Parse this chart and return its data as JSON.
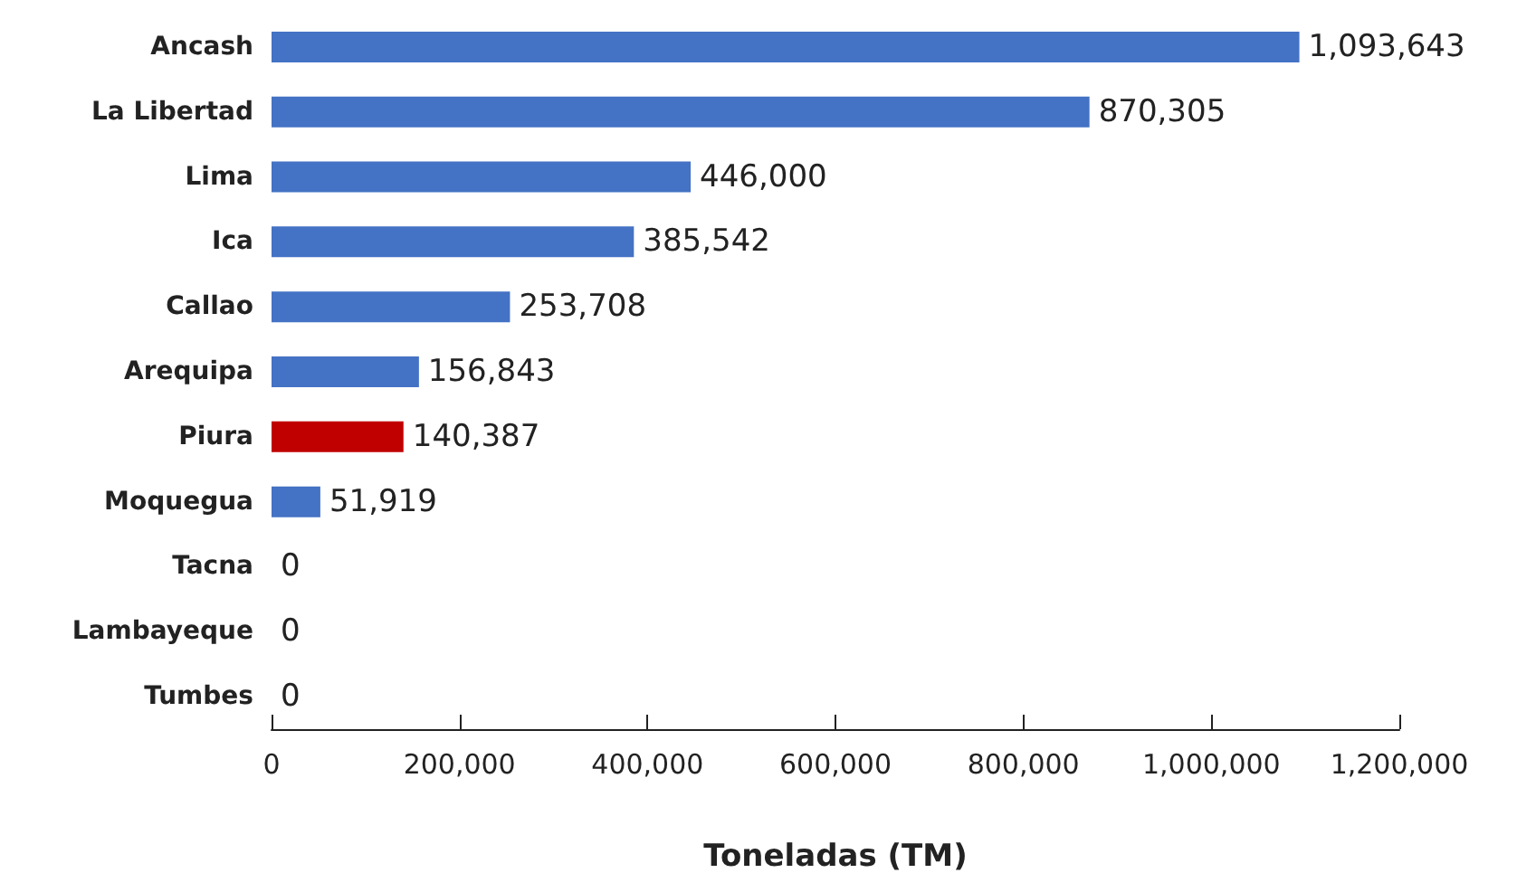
{
  "chart_data": {
    "type": "bar",
    "orientation": "horizontal",
    "xlabel": "Toneladas (TM)",
    "categories": [
      "Ancash",
      "La Libertad",
      "Lima",
      "Ica",
      "Callao",
      "Arequipa",
      "Piura",
      "Moquegua",
      "Tacna",
      "Lambayeque",
      "Tumbes"
    ],
    "values": [
      1093643,
      870305,
      446000,
      385542,
      253708,
      156843,
      140387,
      51919,
      0,
      0,
      0
    ],
    "value_labels": [
      "1,093,643",
      "870,305",
      "446,000",
      "385,542",
      "253,708",
      "156,843",
      "140,387",
      "51,919",
      "0",
      "0",
      "0"
    ],
    "colors": [
      "#4472c4",
      "#4472c4",
      "#4472c4",
      "#4472c4",
      "#4472c4",
      "#4472c4",
      "#c00000",
      "#4472c4",
      "#4472c4",
      "#4472c4",
      "#4472c4"
    ],
    "xlim": [
      0,
      1200000
    ],
    "xticks": [
      0,
      {
        "value": 200000,
        "label": "200,000"
      },
      {
        "value": 400000,
        "label": "400,000"
      },
      {
        "value": 600000,
        "label": "600,000"
      },
      {
        "value": 800000,
        "label": "800,000"
      },
      {
        "value": 1000000,
        "label": "1,000,000"
      },
      {
        "value": 1200000,
        "label": "1,200,000"
      }
    ],
    "grid": false
  }
}
